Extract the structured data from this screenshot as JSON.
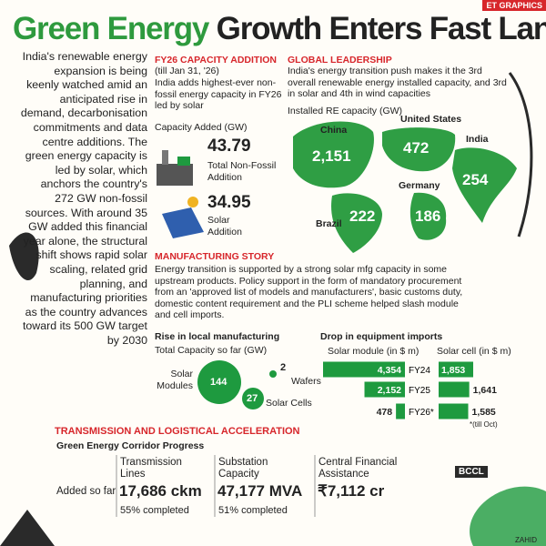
{
  "header": {
    "badge": "ET GRAPHICS",
    "title_green": "Green Energy",
    "title_rest": "Growth Enters Fast Lane"
  },
  "intro": "India's renewable energy expansion is being keenly watched amid an anticipated rise in demand, decarbonisation commitments and data centre additions. The green energy capacity is led by solar, which anchors the country's 272 GW non-fossil sources. With around 35 GW added this financial year alone, the structural shift shows rapid solar scaling, related grid planning, and manufacturing priorities as the country advances toward its 500 GW target by 2030",
  "fy26": {
    "heading": "FY26 CAPACITY ADDITION",
    "subheading": "(till Jan 31, '26)",
    "text": "India adds highest-ever non-fossil energy capacity in FY26 led by solar",
    "unit": "Capacity Added (GW)",
    "items": [
      {
        "value": "43.79",
        "label": "Total Non-Fossil Addition"
      },
      {
        "value": "34.95",
        "label": "Solar Addition"
      }
    ]
  },
  "global": {
    "heading": "GLOBAL LEADERSHIP",
    "text": "India's energy transition push makes it the 3rd overall renewable energy installed capacity, and 3rd in solar and 4th in wind capacities",
    "unit": "Installed RE capacity (GW)",
    "countries": [
      {
        "name": "China",
        "value": "2,151"
      },
      {
        "name": "United States",
        "value": "472"
      },
      {
        "name": "India",
        "value": "254"
      },
      {
        "name": "Brazil",
        "value": "222"
      },
      {
        "name": "Germany",
        "value": "186"
      }
    ]
  },
  "manufacturing": {
    "heading": "MANUFACTURING STORY",
    "text": "Energy transition is supported by a strong solar mfg capacity in some upstream products. Policy support in the form of mandatory procurement from an 'approved list of models and manufacturers', basic customs duty, domestic content requirement and the PLI scheme helped slash module and cell imports.",
    "local": {
      "heading": "Rise in local manufacturing",
      "unit": "Total Capacity so far (GW)",
      "items": [
        {
          "name": "Solar Modules",
          "value": "144"
        },
        {
          "name": "Wafers",
          "value": "2"
        },
        {
          "name": "Solar Cells",
          "value": "27"
        }
      ]
    },
    "imports": {
      "heading": "Drop in equipment imports",
      "years": [
        "FY24",
        "FY25",
        "FY26*"
      ],
      "series": [
        {
          "name": "Solar module (in $ m)",
          "color": "#1e9a3f",
          "values": [
            4354,
            2152,
            478
          ],
          "value_labels": [
            "4,354",
            "2,152",
            "478"
          ]
        },
        {
          "name": "Solar cell (in $ m)",
          "color": "#1e9a3f",
          "values": [
            1853,
            1641,
            1585
          ],
          "value_labels": [
            "1,853",
            "1,641",
            "1,585"
          ]
        }
      ],
      "note": "*(till Oct)"
    }
  },
  "transmission": {
    "heading": "TRANSMISSION AND LOGISTICAL ACCELERATION",
    "subheading": "Green Energy Corridor Progress",
    "row_label": "Added so far",
    "items": [
      {
        "label": "Transmission Lines",
        "value": "17,686 ckm",
        "note": "55% completed"
      },
      {
        "label": "Substation Capacity",
        "value": "47,177 MVA",
        "note": "51% completed"
      },
      {
        "label": "Central Financial Assistance",
        "value": "₹7,112 cr"
      }
    ]
  },
  "footer": {
    "mark": "BCCL",
    "credit": "ZAHID"
  }
}
